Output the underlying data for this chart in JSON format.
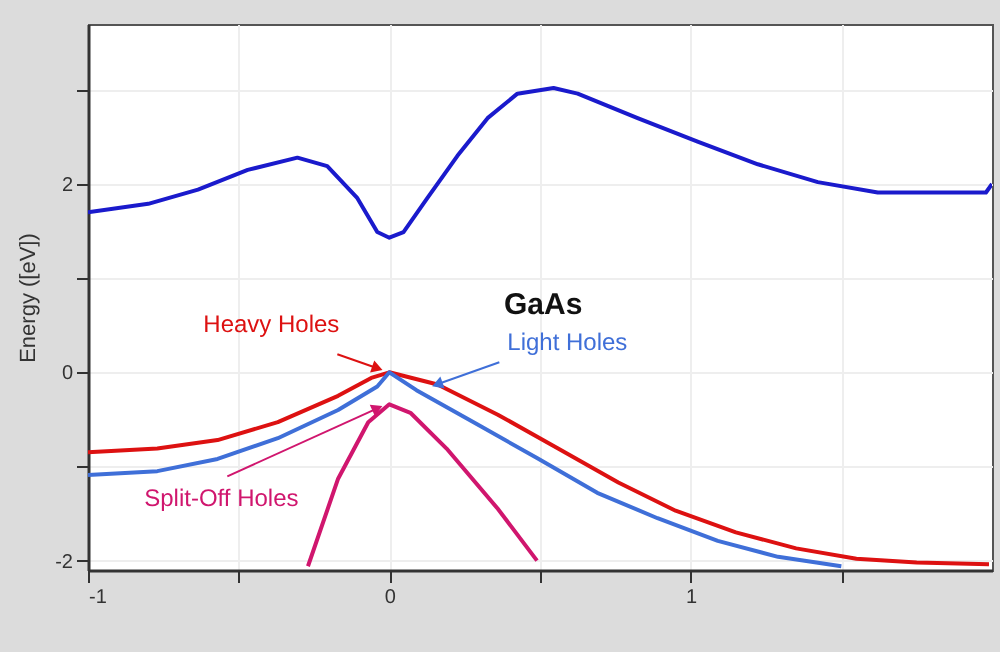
{
  "chart_data": {
    "type": "line",
    "ylabel": "Energy ([eV])",
    "annotations": [
      "GaAs"
    ],
    "xlim": [
      -1,
      2
    ],
    "ylim": [
      -2.1,
      3.7
    ],
    "xticks": [
      -1,
      {
        "value": -0.5,
        "label": null
      },
      0,
      {
        "value": 0.5,
        "label": null
      },
      1,
      {
        "value": 1.5,
        "label": null
      }
    ],
    "yticks": [
      -2,
      {
        "value": -1,
        "label": null
      },
      0,
      {
        "value": 1,
        "label": null
      },
      2,
      {
        "value": 3,
        "label": null
      }
    ],
    "grid": true,
    "series": [
      {
        "color": "#1a1acc",
        "x": [
          -1,
          -0.8,
          -0.635,
          -0.47,
          -0.305,
          -0.206,
          -0.106,
          -0.04,
          0,
          0.047,
          0.126,
          0.226,
          0.326,
          0.425,
          0.545,
          0.625,
          0.824,
          1.023,
          1.223,
          1.422,
          1.621,
          1.82,
          1.98,
          2.0
        ],
        "values": [
          1.7,
          1.79,
          1.94,
          2.15,
          2.28,
          2.19,
          1.85,
          1.49,
          1.43,
          1.49,
          1.85,
          2.3,
          2.7,
          2.96,
          3.02,
          2.96,
          2.7,
          2.45,
          2.21,
          2.02,
          1.91,
          1.91,
          1.91,
          2.0
        ]
      },
      {
        "name": "Heavy Holes",
        "color": "#dd1111",
        "x": [
          -1,
          -0.77,
          -0.57,
          -0.37,
          -0.17,
          -0.06,
          0,
          0.16,
          0.36,
          0.56,
          0.76,
          0.95,
          1.15,
          1.35,
          1.55,
          1.75,
          1.99
        ],
        "values": [
          -0.85,
          -0.81,
          -0.72,
          -0.53,
          -0.25,
          -0.06,
          0,
          -0.13,
          -0.45,
          -0.81,
          -1.17,
          -1.47,
          -1.7,
          -1.87,
          -1.98,
          -2.02,
          -2.04
        ]
      },
      {
        "name": "Light Holes",
        "color": "#3f6fd8",
        "x": [
          -1,
          -0.77,
          -0.57,
          -0.37,
          -0.17,
          -0.04,
          0,
          0.09,
          0.29,
          0.49,
          0.69,
          0.89,
          1.09,
          1.29,
          1.5
        ],
        "values": [
          -1.09,
          -1.05,
          -0.92,
          -0.7,
          -0.4,
          -0.15,
          0,
          -0.19,
          -0.55,
          -0.91,
          -1.28,
          -1.55,
          -1.79,
          -1.96,
          -2.06
        ]
      },
      {
        "name": "Split-Off Holes",
        "color": "#d0166e",
        "x": [
          -0.27,
          -0.17,
          -0.07,
          0,
          0.07,
          0.19,
          0.36,
          0.49
        ],
        "values": [
          -2.06,
          -1.13,
          -0.53,
          -0.34,
          -0.43,
          -0.81,
          -1.45,
          -2.0
        ]
      }
    ]
  }
}
